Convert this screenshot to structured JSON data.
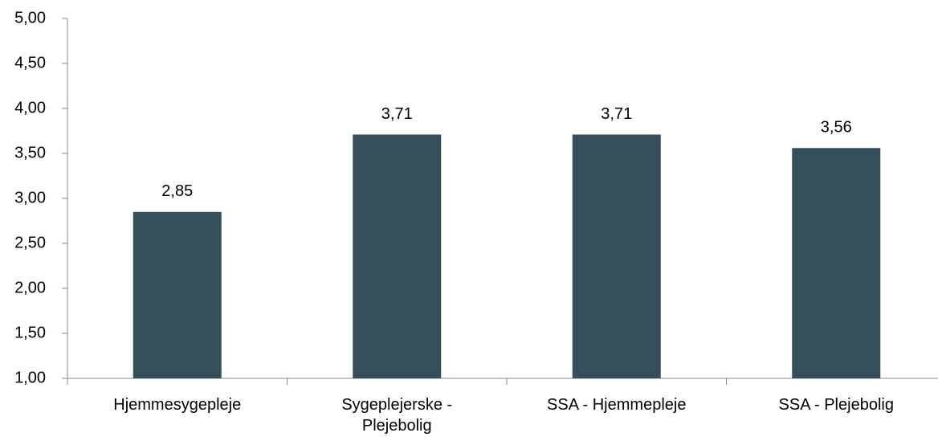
{
  "chart_data": {
    "type": "bar",
    "categories": [
      "Hjemmesygepleje",
      "Sygeplejerske - Plejebolig",
      "SSA - Hjemmepleje",
      "SSA - Plejebolig"
    ],
    "values": [
      2.85,
      3.71,
      3.71,
      3.56
    ],
    "value_labels": [
      "2,85",
      "3,71",
      "3,71",
      "3,56"
    ],
    "color": "#36505a",
    "ylim": [
      1,
      5
    ],
    "yticks": [
      {
        "value": 1,
        "label": "1,00"
      },
      {
        "value": 1.5,
        "label": "1,50"
      },
      {
        "value": 2,
        "label": "2,00"
      },
      {
        "value": 2.5,
        "label": "2,50"
      },
      {
        "value": 3,
        "label": "3,00"
      },
      {
        "value": 3.5,
        "label": "3,50"
      },
      {
        "value": 4,
        "label": "4,00"
      },
      {
        "value": 4.5,
        "label": "4,50"
      },
      {
        "value": 5,
        "label": "5,00"
      }
    ]
  }
}
